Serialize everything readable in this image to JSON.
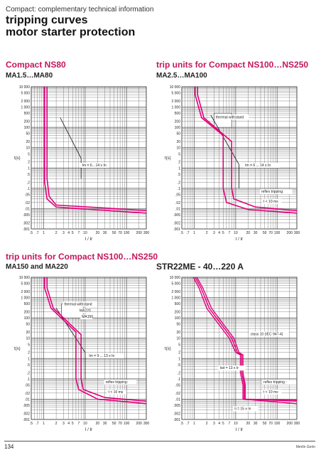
{
  "header": {
    "subtitle": "Compact: complementary technical information",
    "title_line1": "tripping curves",
    "title_line2": "motor starter protection"
  },
  "y_ticks": [
    "10 000",
    "5 000",
    "2 000",
    "1 000",
    "500",
    "200",
    "100",
    "50",
    "20",
    "10",
    "5",
    "2",
    "1",
    ".5",
    ".2",
    ".1",
    ".05",
    ".02",
    ".01",
    ".005",
    ".002",
    ".001"
  ],
  "x_ticks": [
    ".5",
    ".7",
    "1",
    "2",
    "3",
    "4",
    "5",
    "7",
    "10",
    "20",
    "30",
    "50",
    "70",
    "100",
    "200",
    "300"
  ],
  "y_axis_label": "t(s)",
  "x_axis_label": "I / Ir",
  "panels": [
    {
      "title": "Compact NS80",
      "subtitle": "MA1.5…MA80",
      "annotations": [
        "Im = 6…14 x In"
      ]
    },
    {
      "title": "trip units for Compact NS100…NS250",
      "subtitle": "MA2.5…MA100",
      "annotations": [
        "thermal withstand",
        "Im = 6 ... 14 x In",
        "reflex tripping:",
        "t < 10 ms"
      ]
    },
    {
      "title": "trip units for Compact NS100…NS250",
      "subtitle": "MA150 and MA220",
      "annotations": [
        "thermal withstand",
        "MA220",
        "MA150",
        "Im = 9 ... 13 x In",
        "reflex tripping:",
        "t < 10 ms"
      ]
    },
    {
      "title": "",
      "subtitle": "STR22ME - 40…220 A",
      "annotations": [
        "class 10 (IEC 947-4)",
        "Isd = 13 x Ir",
        "Ii = 15 x In",
        "reflex tripping :",
        "t < 10 ms"
      ]
    }
  ],
  "footer": {
    "page_number": "134",
    "brand": "Merlin Gerin"
  },
  "colors": {
    "accent": "#c2185b",
    "curve": "#e0007a",
    "grid": "#555555"
  }
}
